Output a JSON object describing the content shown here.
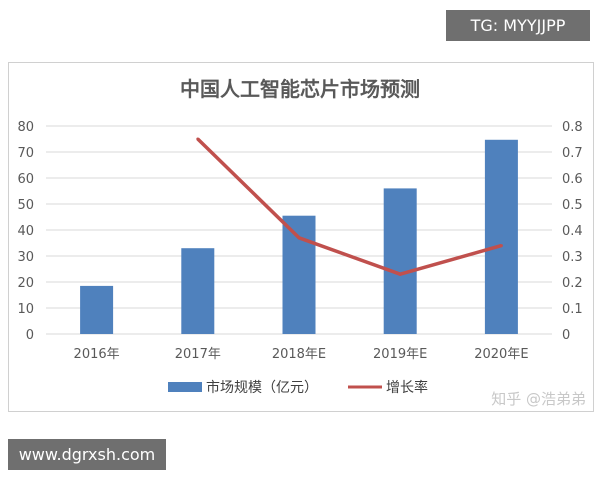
{
  "overlays": {
    "tg_label": "TG: MYYJJPP",
    "site_label": "www.dgrxsh.com",
    "watermark": "知乎 @浩弟弟"
  },
  "chart_data": {
    "type": "bar",
    "title": "中国人工智能芯片市场预测",
    "categories": [
      "2016年",
      "2017年",
      "2018年E",
      "2019年E",
      "2020年E"
    ],
    "series": [
      {
        "name": "市场规模（亿元）",
        "type": "bar",
        "axis": "left",
        "color": "#4f81bd",
        "values": [
          18.5,
          33,
          45.5,
          56,
          74.7
        ]
      },
      {
        "name": "增长率",
        "type": "line",
        "axis": "right",
        "color": "#c0504d",
        "values": [
          null,
          0.75,
          0.37,
          0.23,
          0.34
        ]
      }
    ],
    "y_left": {
      "range": [
        0,
        80
      ],
      "ticks": [
        "0",
        "10",
        "20",
        "30",
        "40",
        "50",
        "60",
        "70",
        "80"
      ]
    },
    "y_right": {
      "range": [
        0,
        0.8
      ],
      "ticks": [
        "0",
        "0.1",
        "0.2",
        "0.3",
        "0.4",
        "0.5",
        "0.6",
        "0.7",
        "0.8"
      ]
    },
    "grid": true,
    "legend": "bottom"
  }
}
